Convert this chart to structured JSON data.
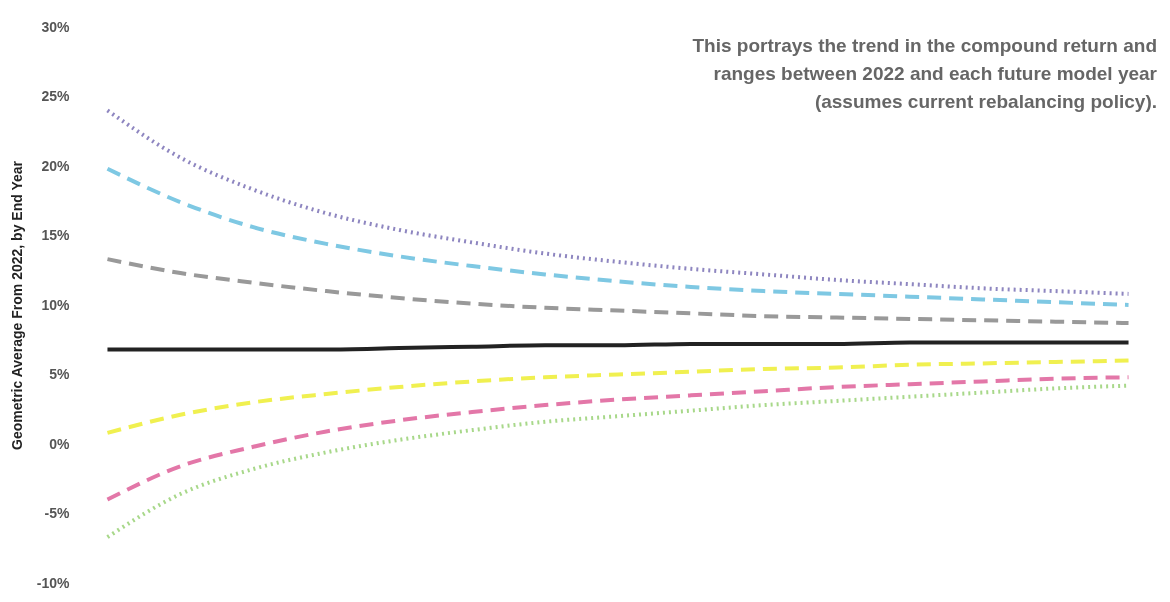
{
  "chart_data": {
    "type": "line",
    "ylabel": "Geometric Average From 2022, by End Year",
    "annotations": [
      "This portrays the trend in the compound return and ranges between 2022 and each future model year (assumes current rebalancing policy)."
    ],
    "categories": [
      null,
      null,
      null,
      null,
      null,
      null,
      null,
      null,
      null,
      null,
      null,
      null,
      null,
      null,
      null
    ],
    "ylim": [
      -10,
      30
    ],
    "yticks": [
      {
        "value": -10,
        "label": "-10%"
      },
      {
        "value": -5,
        "label": "-5%"
      },
      {
        "value": 0,
        "label": "0%"
      },
      {
        "value": 5,
        "label": "5%"
      },
      {
        "value": 10,
        "label": "10%"
      },
      {
        "value": 15,
        "label": "15%"
      },
      {
        "value": 20,
        "label": "20%"
      },
      {
        "value": 25,
        "label": "25%"
      },
      {
        "value": 30,
        "label": "30%"
      }
    ],
    "tick_labels": "y",
    "series": [
      {
        "color": "#8e86c0",
        "line_style": "dotted",
        "values": [
          24.0,
          20.6,
          18.3,
          16.6,
          15.4,
          14.5,
          13.7,
          13.1,
          12.6,
          12.2,
          11.8,
          11.5,
          11.2,
          11.0,
          10.8
        ]
      },
      {
        "color": "#7ec8e3",
        "line_style": "dashed",
        "values": [
          19.8,
          17.4,
          15.6,
          14.4,
          13.5,
          12.8,
          12.2,
          11.7,
          11.3,
          11.0,
          10.8,
          10.6,
          10.4,
          10.2,
          10.0
        ]
      },
      {
        "color": "#999999",
        "line_style": "dashed",
        "values": [
          13.3,
          12.3,
          11.6,
          11.0,
          10.5,
          10.1,
          9.8,
          9.6,
          9.4,
          9.2,
          9.1,
          9.0,
          8.9,
          8.8,
          8.7
        ]
      },
      {
        "color": "#222222",
        "line_style": "solid",
        "values": [
          6.8,
          6.8,
          6.8,
          6.8,
          6.9,
          7.0,
          7.1,
          7.1,
          7.2,
          7.2,
          7.2,
          7.3,
          7.3,
          7.3,
          7.3
        ]
      },
      {
        "color": "#f0f050",
        "line_style": "dashed",
        "values": [
          0.8,
          2.1,
          3.0,
          3.6,
          4.1,
          4.5,
          4.8,
          5.0,
          5.2,
          5.4,
          5.5,
          5.7,
          5.8,
          5.9,
          6.0
        ]
      },
      {
        "color": "#e377a8",
        "line_style": "dashed",
        "values": [
          -4.0,
          -1.6,
          -0.2,
          0.9,
          1.7,
          2.3,
          2.8,
          3.2,
          3.5,
          3.8,
          4.1,
          4.3,
          4.5,
          4.7,
          4.8
        ]
      },
      {
        "color": "#a8d88a",
        "line_style": "dotted",
        "values": [
          -6.7,
          -3.6,
          -1.8,
          -0.6,
          0.3,
          1.0,
          1.6,
          2.0,
          2.4,
          2.8,
          3.1,
          3.4,
          3.7,
          4.0,
          4.2
        ]
      }
    ]
  }
}
